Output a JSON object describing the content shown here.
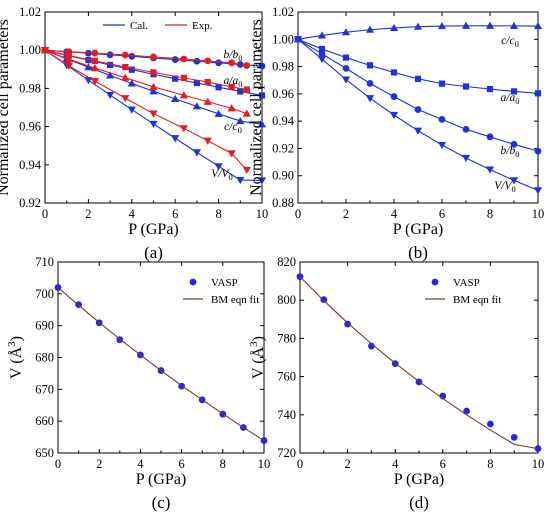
{
  "figure": {
    "colors": {
      "cal": "#1f33d6",
      "exp": "#e31c23",
      "vasp": "#2525e8",
      "fit": "#7a3d22"
    }
  },
  "chart_data": [
    {
      "type": "line",
      "panel_label": "(a)",
      "xlabel": "P (GPa)",
      "ylabel": "Normalized cell parameters",
      "xlim": [
        0,
        10
      ],
      "ylim": [
        0.92,
        1.02
      ],
      "xticks": [
        "0",
        "2",
        "4",
        "6",
        "8",
        "10"
      ],
      "yticks": [
        "0.92",
        "0.94",
        "0.96",
        "0.98",
        "1.00",
        "1.02"
      ],
      "grid": false,
      "legend": {
        "placement": "top-left",
        "entries": [
          "Cal.",
          "Exp."
        ]
      },
      "series": [
        {
          "name": "b/b0",
          "label_main": "b/b",
          "label_sub": "0",
          "group": "Cal.",
          "marker": "circle",
          "x": [
            0,
            1,
            2,
            3,
            4,
            5,
            6,
            7,
            8,
            9,
            10
          ],
          "y": [
            1.0,
            0.9992,
            0.9984,
            0.9976,
            0.9968,
            0.9959,
            0.9951,
            0.9942,
            0.9934,
            0.9925,
            0.9917
          ]
        },
        {
          "name": "a/a0",
          "label_main": "a/a",
          "label_sub": "0",
          "group": "Cal.",
          "marker": "square",
          "x": [
            0,
            1,
            2,
            3,
            4,
            5,
            6,
            7,
            8,
            9,
            10
          ],
          "y": [
            1.0,
            0.9973,
            0.9948,
            0.9923,
            0.9898,
            0.9874,
            0.9851,
            0.9828,
            0.9806,
            0.9784,
            0.9763
          ]
        },
        {
          "name": "c/c0",
          "label_main": "c/c",
          "label_sub": "0",
          "group": "Cal.",
          "marker": "triangle-up",
          "x": [
            0,
            1,
            2,
            3,
            4,
            5,
            6,
            7,
            8,
            9,
            10
          ],
          "y": [
            1.0,
            0.9955,
            0.9911,
            0.9868,
            0.9826,
            0.9785,
            0.9745,
            0.9706,
            0.9667,
            0.9629,
            0.9612
          ]
        },
        {
          "name": "V/V0",
          "label_main": "V/V",
          "label_sub": "0",
          "group": "Cal.",
          "marker": "triangle-down",
          "x": [
            0,
            1,
            2,
            3,
            4,
            5,
            6,
            7,
            8,
            9,
            10
          ],
          "y": [
            1.0,
            0.9922,
            0.9843,
            0.9766,
            0.9689,
            0.9614,
            0.9539,
            0.9465,
            0.9392,
            0.932,
            0.9318
          ]
        },
        {
          "name": "Exp. b/b0",
          "group": "Exp.",
          "marker": "circle",
          "x": [
            0,
            1.1,
            2.3,
            3.7,
            5.0,
            6.4,
            7.5,
            8.6,
            9.3
          ],
          "y": [
            1.0,
            0.9992,
            0.9985,
            0.9975,
            0.9965,
            0.9954,
            0.9944,
            0.9934,
            0.992
          ]
        },
        {
          "name": "Exp. a/a0",
          "group": "Exp.",
          "marker": "square",
          "x": [
            0,
            1.1,
            2.3,
            3.7,
            5.0,
            6.4,
            7.5,
            8.6,
            9.3
          ],
          "y": [
            1.0,
            0.9972,
            0.9944,
            0.9912,
            0.9884,
            0.9855,
            0.9833,
            0.9808,
            0.9794
          ]
        },
        {
          "name": "Exp. c/c0",
          "group": "Exp.",
          "marker": "triangle-up",
          "x": [
            0,
            1.1,
            2.3,
            3.7,
            5.0,
            6.4,
            7.5,
            8.6,
            9.3
          ],
          "y": [
            1.0,
            0.9953,
            0.9906,
            0.9856,
            0.9808,
            0.9764,
            0.973,
            0.9696,
            0.9668
          ]
        },
        {
          "name": "Exp. V/V0",
          "group": "Exp.",
          "marker": "triangle-down",
          "x": [
            0,
            1.1,
            2.3,
            3.7,
            5.0,
            6.4,
            7.5,
            8.6,
            9.3
          ],
          "y": [
            1.0,
            0.9918,
            0.9838,
            0.9749,
            0.9668,
            0.9591,
            0.9526,
            0.946,
            0.9373
          ]
        }
      ]
    },
    {
      "type": "line",
      "panel_label": "(b)",
      "xlabel": "P (GPa)",
      "ylabel": "Normalized cell parameters",
      "xlim": [
        0,
        10
      ],
      "ylim": [
        0.88,
        1.02
      ],
      "xticks": [
        "0",
        "2",
        "4",
        "6",
        "8",
        "10"
      ],
      "yticks": [
        "0.88",
        "0.90",
        "0.92",
        "0.94",
        "0.96",
        "0.98",
        "1.00",
        "1.02"
      ],
      "grid": false,
      "series": [
        {
          "name": "c/c0",
          "label_main": "c/c",
          "label_sub": "0",
          "marker": "triangle-up",
          "x": [
            0,
            1,
            2,
            3,
            4,
            5,
            6,
            7,
            8,
            9,
            10
          ],
          "y": [
            1.0,
            1.0028,
            1.0052,
            1.007,
            1.0083,
            1.0092,
            1.0097,
            1.0099,
            1.0099,
            1.0098,
            1.0097
          ]
        },
        {
          "name": "a/a0",
          "label_main": "a/a",
          "label_sub": "0",
          "marker": "square",
          "x": [
            0,
            1,
            2,
            3,
            4,
            5,
            6,
            7,
            8,
            9,
            10
          ],
          "y": [
            1.0,
            0.9929,
            0.9866,
            0.9809,
            0.9757,
            0.971,
            0.9675,
            0.9654,
            0.9635,
            0.9618,
            0.9604
          ]
        },
        {
          "name": "b/b0",
          "label_main": "b/b",
          "label_sub": "0",
          "marker": "circle",
          "x": [
            0,
            1,
            2,
            3,
            4,
            5,
            6,
            7,
            8,
            9,
            10
          ],
          "y": [
            1.0,
            0.9893,
            0.9787,
            0.9677,
            0.958,
            0.9485,
            0.9413,
            0.934,
            0.9285,
            0.923,
            0.918
          ]
        },
        {
          "name": "V/V0",
          "label_main": "V/V",
          "label_sub": "0",
          "marker": "triangle-down",
          "x": [
            0,
            1,
            2,
            3,
            4,
            5,
            6,
            7,
            8,
            9,
            10
          ],
          "y": [
            1.0,
            0.9855,
            0.9705,
            0.9568,
            0.9445,
            0.933,
            0.9225,
            0.913,
            0.9045,
            0.8966,
            0.8893
          ]
        }
      ]
    },
    {
      "type": "scatter",
      "panel_label": "(c)",
      "xlabel": "P (GPa)",
      "ylabel_main": "V (Å",
      "ylabel_sup": "3",
      "ylabel_end": ")",
      "xlim": [
        0,
        10
      ],
      "ylim": [
        650,
        710
      ],
      "xticks": [
        "0",
        "2",
        "4",
        "6",
        "8",
        "10"
      ],
      "yticks": [
        "650",
        "660",
        "670",
        "680",
        "690",
        "700",
        "710"
      ],
      "grid": false,
      "legend": {
        "placement": "top-right",
        "entries": [
          "VASP",
          "BM eqn fit"
        ]
      },
      "series": [
        {
          "name": "VASP",
          "marker": "circle",
          "x": [
            0,
            1,
            2,
            3,
            4,
            5,
            6,
            7,
            8,
            9,
            10
          ],
          "y": [
            702.0,
            696.6,
            690.9,
            685.6,
            680.8,
            675.9,
            671.0,
            666.7,
            662.2,
            658.0,
            653.9
          ]
        },
        {
          "name": "BM eqn fit",
          "marker": "line",
          "x": [
            0,
            1,
            2,
            3,
            4,
            5,
            6,
            7,
            8,
            9,
            10
          ],
          "y": [
            702.0,
            696.4,
            691.0,
            685.8,
            680.8,
            675.9,
            671.2,
            666.7,
            662.3,
            658.0,
            653.9
          ]
        }
      ]
    },
    {
      "type": "scatter",
      "panel_label": "(d)",
      "xlabel": "P (GPa)",
      "ylabel_main": "V (Å",
      "ylabel_sup": "3",
      "ylabel_end": ")",
      "xlim": [
        0,
        10
      ],
      "ylim": [
        720,
        820
      ],
      "xticks": [
        "0",
        "2",
        "4",
        "6",
        "8",
        "10"
      ],
      "yticks": [
        "720",
        "740",
        "760",
        "780",
        "800",
        "820"
      ],
      "grid": false,
      "legend": {
        "placement": "top-right",
        "entries": [
          "VASP",
          "BM eqn fit"
        ]
      },
      "series": [
        {
          "name": "VASP",
          "marker": "circle",
          "x": [
            0,
            1,
            2,
            3,
            4,
            5,
            6,
            7,
            8,
            9,
            10
          ],
          "y": [
            812.3,
            800.3,
            787.5,
            776.0,
            766.8,
            757.2,
            749.8,
            742.0,
            735.2,
            728.2,
            722.3
          ]
        },
        {
          "name": "BM eqn fit",
          "marker": "line",
          "x": [
            0,
            1,
            2,
            3,
            4,
            5,
            6,
            7,
            8,
            9,
            10
          ],
          "y": [
            812.3,
            799.8,
            788.1,
            777.2,
            767.0,
            757.4,
            748.5,
            740.0,
            732.0,
            724.5,
            722.3
          ]
        }
      ]
    }
  ]
}
